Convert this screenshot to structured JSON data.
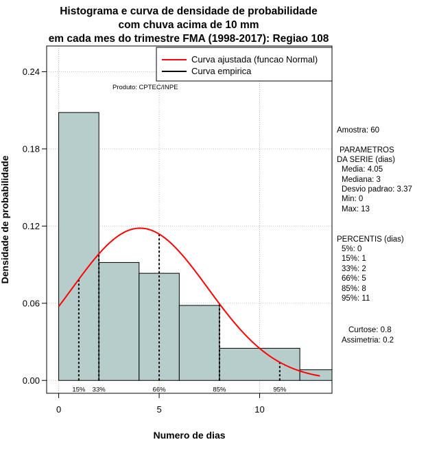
{
  "chart_data": {
    "type": "histogram",
    "title_lines": [
      "Histograma e curva de densidade de probabilidade",
      "com chuva acima de 10 mm",
      "em cada mes do trimestre FMA (1998-2017): Regiao 108"
    ],
    "xlabel": "Numero de dias",
    "ylabel": "Densidade de probabilidade",
    "xlim": [
      -0.6,
      13.6
    ],
    "ylim": [
      -0.01,
      0.26
    ],
    "x_ticks": [
      0,
      5,
      10
    ],
    "y_ticks": [
      0.0,
      0.06,
      0.12,
      0.18,
      0.24
    ],
    "y_tick_labels": [
      "0.00",
      "0.06",
      "0.12",
      "0.18",
      "0.24"
    ],
    "x_grid": [
      0,
      5,
      10
    ],
    "y_grid": [
      0.0,
      0.06,
      0.12,
      0.18,
      0.24
    ],
    "bins": [
      {
        "x0": 0,
        "x1": 2,
        "density": 0.2083
      },
      {
        "x0": 2,
        "x1": 4,
        "density": 0.0917
      },
      {
        "x0": 4,
        "x1": 6,
        "density": 0.0833
      },
      {
        "x0": 6,
        "x1": 8,
        "density": 0.0583
      },
      {
        "x0": 8,
        "x1": 12,
        "density": 0.025
      },
      {
        "x0": 12,
        "x1": 14,
        "density": 0.0083
      }
    ],
    "normal_fit": {
      "mean": 4.05,
      "sd": 3.37,
      "x_from": 0,
      "x_to": 13
    },
    "percentile_lines": [
      {
        "label": "15%",
        "x": 1
      },
      {
        "label": "33%",
        "x": 2
      },
      {
        "label": "66%",
        "x": 5
      },
      {
        "label": "85%",
        "x": 8
      },
      {
        "label": "95%",
        "x": 11
      }
    ],
    "legend": [
      {
        "label": "Curva ajustada (funcao Normal)",
        "color": "#ff0000"
      },
      {
        "label": "Curva empirica",
        "color": "#000000"
      }
    ],
    "legend_position": "top-right",
    "credit": "Produto: CPTEC/INPE",
    "bar_color": "#b6cdcc",
    "curve_color": "#ff0000"
  },
  "side_panel": {
    "sample": "Amostra: 60",
    "params_title": [
      "PARAMETROS",
      "DA SERIE (dias)"
    ],
    "params": [
      "Media: 4.05",
      "Mediana: 3",
      "Desvio padrao: 3.37",
      "Min: 0",
      "Max: 13"
    ],
    "percentis_title": "PERCENTIS (dias)",
    "percentis": [
      "5%: 0",
      "15%: 1",
      "33%: 2",
      "66%: 5",
      "85%: 8",
      "95%: 11"
    ],
    "shape": [
      "Curtose: 0.8",
      "Assimetria: 0.2"
    ]
  }
}
